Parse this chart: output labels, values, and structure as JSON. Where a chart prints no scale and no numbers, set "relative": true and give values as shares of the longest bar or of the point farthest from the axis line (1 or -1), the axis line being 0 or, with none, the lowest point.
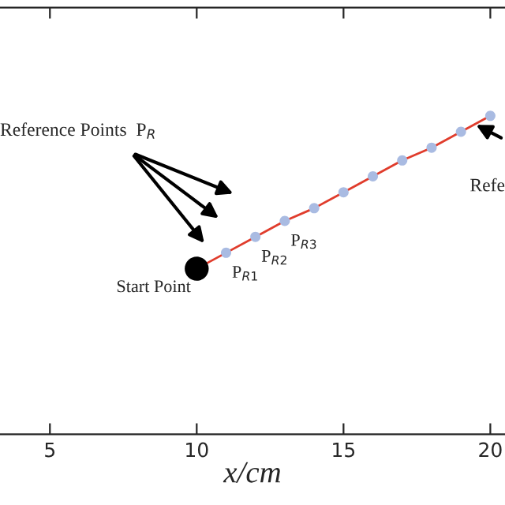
{
  "chart_data": {
    "type": "line",
    "relative": true,
    "xlabel": "x/cm",
    "series": [
      {
        "type": "line",
        "color": "#e03c2c",
        "x": [
          10,
          11,
          12,
          13,
          14,
          15,
          16,
          17,
          18,
          19,
          20
        ],
        "values": [
          0.52,
          0.57,
          0.62,
          0.67,
          0.71,
          0.76,
          0.81,
          0.86,
          0.9,
          0.95,
          1.0
        ]
      },
      {
        "type": "scatter",
        "color": "#a9bbe2",
        "x": [
          11,
          12,
          13,
          14,
          15,
          16,
          17,
          18,
          19,
          20
        ],
        "values": [
          0.57,
          0.62,
          0.67,
          0.71,
          0.76,
          0.81,
          0.86,
          0.9,
          0.95,
          1.0
        ]
      },
      {
        "type": "scatter",
        "color": "#000000",
        "x": [
          10
        ],
        "values": [
          0.52
        ]
      }
    ],
    "xlim": [
      3.3,
      20.5
    ],
    "xticks": [
      5,
      10,
      15,
      20
    ],
    "tick_labels": "x",
    "grid": false,
    "legend": false,
    "annotations": [
      {
        "text": "Start Point",
        "x": 10,
        "y": 0.52
      },
      {
        "text": "P$_{R1}$",
        "x": 11,
        "y": 0.57
      },
      {
        "text": "P$_{R2}$",
        "x": 12,
        "y": 0.62
      },
      {
        "text": "P$_{R3}$",
        "x": 13,
        "y": 0.67
      },
      "Reference Points  P$_{R}$",
      "Refe"
    ]
  }
}
